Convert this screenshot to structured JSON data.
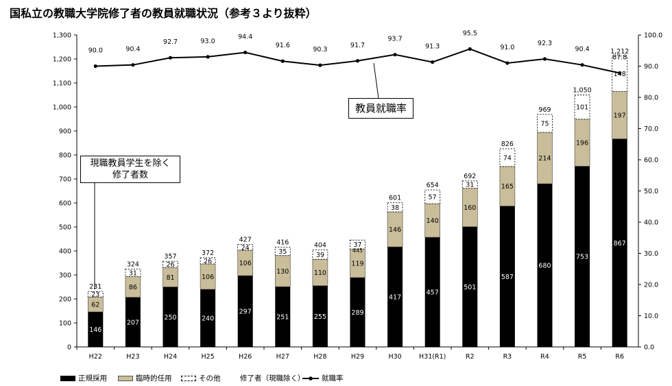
{
  "title": "国私立の教職大学院修了者の教員就職状況（参考３より抜粋）",
  "callouts": {
    "graduates": [
      "現職教員学生を除く",
      "修了者数"
    ],
    "rate": "教員就職率"
  },
  "legend": {
    "regular": "正規採用",
    "temporary": "臨時的任用",
    "other": "その他",
    "graduates": "修了者（現職除く）",
    "rate": "就職率"
  },
  "colors": {
    "regular": "#000000",
    "temporary": "#c9bd9a",
    "other": "#ffffff",
    "rate_line": "#000000",
    "axis": "#000000",
    "gridline": "none"
  },
  "chart_data": {
    "type": "bar",
    "stacked": true,
    "categories": [
      "H22",
      "H23",
      "H24",
      "H25",
      "H26",
      "H27",
      "H28",
      "H29",
      "H30",
      "H31(R1)",
      "R2",
      "R3",
      "R4",
      "R5",
      "R6"
    ],
    "series": [
      {
        "name": "正規採用",
        "values": [
          146,
          207,
          250,
          240,
          297,
          251,
          255,
          289,
          417,
          457,
          501,
          587,
          680,
          753,
          867
        ]
      },
      {
        "name": "臨時的任用",
        "values": [
          62,
          86,
          81,
          106,
          106,
          130,
          110,
          119,
          146,
          140,
          160,
          165,
          214,
          196,
          197
        ]
      },
      {
        "name": "その他",
        "values": [
          23,
          31,
          26,
          26,
          24,
          35,
          39,
          37,
          38,
          57,
          31,
          74,
          75,
          101,
          148
        ]
      }
    ],
    "totals": [
      "231",
      "324",
      "357",
      "372",
      "427",
      "416",
      "404",
      "",
      "601",
      "654",
      "692",
      "826",
      "969",
      "1,050",
      "1,212"
    ],
    "totals_inner": [
      "",
      "",
      "",
      "",
      "",
      "",
      "",
      "445",
      "",
      "",
      "",
      "",
      "",
      "",
      ""
    ],
    "line_series": {
      "name": "就職率",
      "axis": "right",
      "values": [
        90.0,
        90.4,
        92.7,
        93.0,
        94.4,
        91.6,
        90.3,
        91.7,
        93.7,
        91.3,
        95.5,
        91.0,
        92.3,
        90.4,
        87.8
      ]
    },
    "y_left": {
      "min": 0,
      "max": 1300,
      "step": 100,
      "ticks": [
        "0",
        "100",
        "200",
        "300",
        "400",
        "500",
        "600",
        "700",
        "800",
        "900",
        "1,000",
        "1,100",
        "1,200",
        "1,300"
      ]
    },
    "y_right": {
      "min": 0,
      "max": 100,
      "step": 10,
      "ticks": [
        "0.0",
        "10.0",
        "20.0",
        "30.0",
        "40.0",
        "50.0",
        "60.0",
        "70.0",
        "80.0",
        "90.0",
        "100.0"
      ]
    },
    "grid": false,
    "legend_position": "bottom"
  }
}
